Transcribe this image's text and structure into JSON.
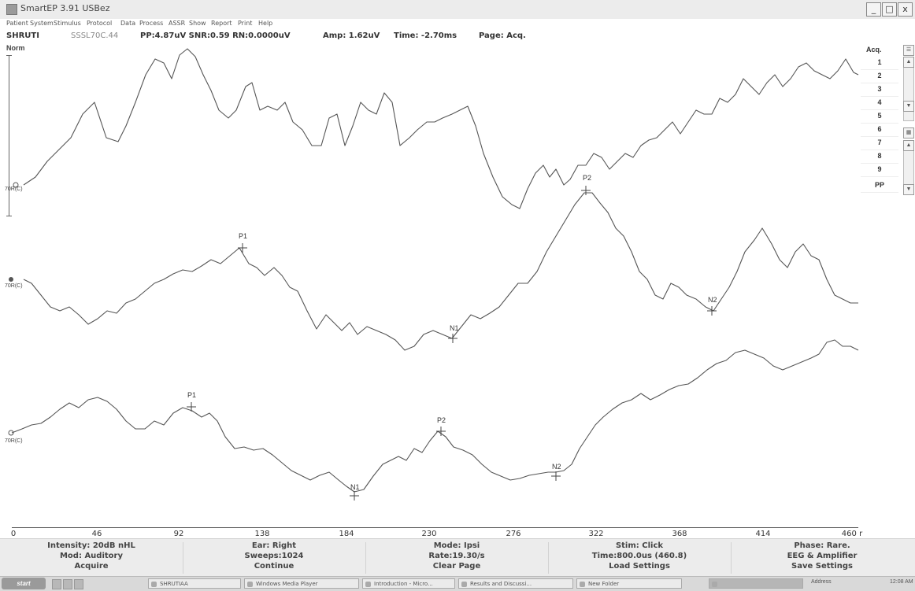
{
  "window": {
    "title": "SmartEP 3.91 USBez",
    "min_label": "_",
    "max_label": "□",
    "close_label": "x"
  },
  "menu": [
    "Patient",
    "System",
    "Stimulus",
    "Protocol",
    "Data",
    "Process",
    "ASSR",
    "Show",
    "Report",
    "Print",
    "Help"
  ],
  "status": {
    "patient": "SHRUTI",
    "file": "SSSL70C.44",
    "pp": "PP:4.87uV SNR:0.59 RN:0.0000uV",
    "amp": "Amp: 1.62uV",
    "time": "Time: -2.70ms",
    "page": "Page: Acq."
  },
  "norm_label": "Norm",
  "acq": {
    "title": "Acq.",
    "rows": [
      "1",
      "2",
      "3",
      "4",
      "5",
      "6",
      "7",
      "8",
      "9",
      "PP"
    ]
  },
  "traces": [
    {
      "label": "70R(C)"
    },
    {
      "label": "70R(C)"
    },
    {
      "label": "70R(C)"
    }
  ],
  "peaks": {
    "trace2": [
      {
        "name": "P1"
      },
      {
        "name": "N1"
      },
      {
        "name": "P2"
      },
      {
        "name": "N2"
      }
    ],
    "trace3": [
      {
        "name": "P1"
      },
      {
        "name": "N1"
      },
      {
        "name": "P2"
      },
      {
        "name": "N2"
      }
    ]
  },
  "axis": {
    "ticks": [
      "0",
      "46",
      "92",
      "138",
      "184",
      "230",
      "276",
      "322",
      "368",
      "414",
      "460 r"
    ]
  },
  "info": [
    {
      "lines": [
        "Intensity: 20dB nHL",
        "Mod: Auditory"
      ],
      "command": "Acquire"
    },
    {
      "lines": [
        "Ear: Right",
        "Sweeps:1024"
      ],
      "command": "Continue"
    },
    {
      "lines": [
        "Mode: Ipsi",
        "Rate:19.30/s"
      ],
      "command": "Clear Page"
    },
    {
      "lines": [
        "Stim: Click",
        "Time:800.0us (460.8)"
      ],
      "command": "Load Settings"
    },
    {
      "lines": [
        "Phase: Rare.",
        "EEG & Amplifier"
      ],
      "command": "Save Settings"
    }
  ],
  "taskbar": {
    "start": "start",
    "items": [
      "SHRUTIAA",
      "Windows Media Player",
      "Introduction - Micro...",
      "Results and Discussi...",
      "New Folder"
    ],
    "address": "Address",
    "clock": "12:08 AM"
  },
  "colors": {
    "trace": "#5a5a5a",
    "panel": "#ececec"
  }
}
